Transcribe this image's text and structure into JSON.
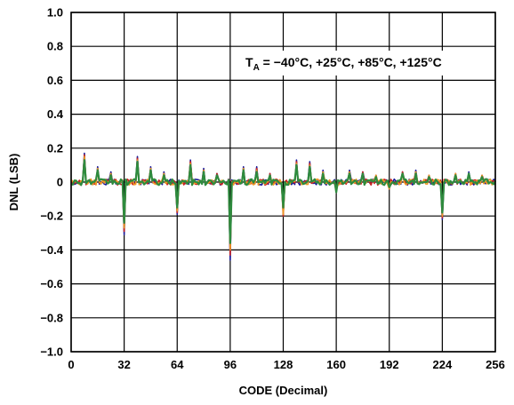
{
  "chart_data": {
    "type": "line",
    "title": "",
    "xlabel": "CODE (Decimal)",
    "ylabel": "DNL (LSB)",
    "xlim": [
      0,
      256
    ],
    "ylim": [
      -1.0,
      1.0
    ],
    "x_ticks": [
      0,
      32,
      64,
      96,
      128,
      160,
      192,
      224,
      256
    ],
    "x_tick_labels": [
      "0",
      "32",
      "64",
      "96",
      "128",
      "160",
      "192",
      "224",
      "256"
    ],
    "y_ticks": [
      1.0,
      0.8,
      0.6,
      0.4,
      0.2,
      0,
      -0.2,
      -0.4,
      -0.6,
      -0.8,
      -1.0
    ],
    "y_tick_labels": [
      "1.0",
      "0.8",
      "0.6",
      "0.4",
      "0.2",
      "0",
      "−0.2",
      "−0.4",
      "−0.6",
      "−0.8",
      "−1.0"
    ],
    "grid": true,
    "legend": "none",
    "annotation": {
      "prefix": "T",
      "subscript": "A",
      "text": " = −40°C, +25°C, +85°C, +125°C"
    },
    "series_colors": [
      "#1a1a99",
      "#cc2222",
      "#ee9922",
      "#2e8b3e"
    ],
    "series": [
      {
        "spikes": [
          [
            8,
            0.17
          ],
          [
            16,
            0.09
          ],
          [
            24,
            0.06
          ],
          [
            32,
            -0.31
          ],
          [
            40,
            0.15
          ],
          [
            48,
            0.09
          ],
          [
            56,
            0.06
          ],
          [
            64,
            -0.07
          ],
          [
            72,
            0.13
          ],
          [
            80,
            0.08
          ],
          [
            88,
            0.05
          ],
          [
            96,
            -0.46
          ],
          [
            104,
            0.09
          ],
          [
            112,
            0.09
          ],
          [
            120,
            0.05
          ],
          [
            128,
            -0.18
          ],
          [
            136,
            0.13
          ],
          [
            144,
            0.12
          ],
          [
            152,
            0.07
          ],
          [
            160,
            -0.05
          ],
          [
            168,
            0.07
          ],
          [
            176,
            0.06
          ],
          [
            184,
            0.04
          ],
          [
            192,
            -0.04
          ],
          [
            200,
            0.06
          ],
          [
            208,
            0.07
          ],
          [
            216,
            0.04
          ],
          [
            224,
            -0.22
          ],
          [
            232,
            0.05
          ],
          [
            240,
            0.06
          ],
          [
            248,
            0.04
          ],
          [
            64,
            -0.19
          ]
        ]
      },
      {
        "spikes": [
          [
            8,
            0.16
          ],
          [
            16,
            0.08
          ],
          [
            24,
            0.05
          ],
          [
            32,
            -0.29
          ],
          [
            40,
            0.14
          ],
          [
            48,
            0.08
          ],
          [
            56,
            0.05
          ],
          [
            64,
            -0.06
          ],
          [
            72,
            0.12
          ],
          [
            80,
            0.07
          ],
          [
            88,
            0.05
          ],
          [
            96,
            -0.43
          ],
          [
            104,
            0.08
          ],
          [
            112,
            0.08
          ],
          [
            120,
            0.05
          ],
          [
            128,
            -0.2
          ],
          [
            136,
            0.12
          ],
          [
            144,
            0.11
          ],
          [
            152,
            0.06
          ],
          [
            160,
            -0.05
          ],
          [
            168,
            0.06
          ],
          [
            176,
            0.06
          ],
          [
            184,
            0.04
          ],
          [
            192,
            -0.04
          ],
          [
            200,
            0.06
          ],
          [
            208,
            0.06
          ],
          [
            216,
            0.04
          ],
          [
            224,
            -0.21
          ],
          [
            232,
            0.05
          ],
          [
            240,
            0.05
          ],
          [
            248,
            0.04
          ],
          [
            64,
            -0.18
          ]
        ]
      },
      {
        "spikes": [
          [
            8,
            0.15
          ],
          [
            16,
            0.08
          ],
          [
            24,
            0.05
          ],
          [
            32,
            -0.27
          ],
          [
            40,
            0.13
          ],
          [
            48,
            0.08
          ],
          [
            56,
            0.05
          ],
          [
            64,
            -0.06
          ],
          [
            72,
            0.11
          ],
          [
            80,
            0.07
          ],
          [
            88,
            0.04
          ],
          [
            96,
            -0.4
          ],
          [
            104,
            0.08
          ],
          [
            112,
            0.07
          ],
          [
            120,
            0.04
          ],
          [
            128,
            -0.19
          ],
          [
            136,
            0.11
          ],
          [
            144,
            0.1
          ],
          [
            152,
            0.06
          ],
          [
            160,
            -0.05
          ],
          [
            168,
            0.06
          ],
          [
            176,
            0.05
          ],
          [
            184,
            0.04
          ],
          [
            192,
            -0.04
          ],
          [
            200,
            0.05
          ],
          [
            208,
            0.06
          ],
          [
            216,
            0.04
          ],
          [
            224,
            -0.2
          ],
          [
            232,
            0.05
          ],
          [
            240,
            0.05
          ],
          [
            248,
            0.04
          ],
          [
            64,
            -0.17
          ]
        ]
      },
      {
        "spikes": [
          [
            8,
            0.13
          ],
          [
            16,
            0.07
          ],
          [
            24,
            0.04
          ],
          [
            32,
            -0.24
          ],
          [
            40,
            0.12
          ],
          [
            48,
            0.07
          ],
          [
            56,
            0.04
          ],
          [
            64,
            -0.05
          ],
          [
            72,
            0.1
          ],
          [
            80,
            0.06
          ],
          [
            88,
            0.04
          ],
          [
            96,
            -0.36
          ],
          [
            104,
            0.07
          ],
          [
            112,
            0.06
          ],
          [
            120,
            0.04
          ],
          [
            128,
            -0.15
          ],
          [
            136,
            0.1
          ],
          [
            144,
            0.09
          ],
          [
            152,
            0.05
          ],
          [
            160,
            -0.06
          ],
          [
            168,
            0.05
          ],
          [
            176,
            0.05
          ],
          [
            184,
            0.03
          ],
          [
            192,
            -0.03
          ],
          [
            200,
            0.05
          ],
          [
            208,
            0.05
          ],
          [
            216,
            0.03
          ],
          [
            224,
            -0.18
          ],
          [
            232,
            0.04
          ],
          [
            240,
            0.05
          ],
          [
            248,
            0.03
          ],
          [
            64,
            -0.15
          ]
        ]
      }
    ]
  }
}
